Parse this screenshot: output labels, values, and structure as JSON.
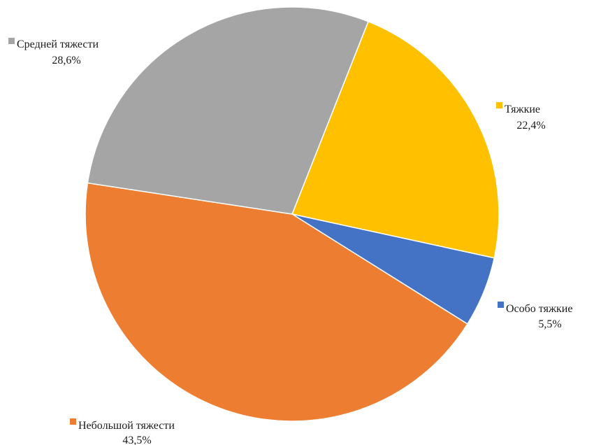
{
  "chart_data": {
    "type": "pie",
    "title": "",
    "slices": [
      {
        "label": "Тяжкие",
        "value": 22.4,
        "value_label": "22,4%",
        "color": "#FFC000"
      },
      {
        "label": "Особо тяжкие",
        "value": 5.5,
        "value_label": "5,5%",
        "color": "#4472C4"
      },
      {
        "label": "Небольшой тяжести",
        "value": 43.5,
        "value_label": "43,5%",
        "color": "#ED7D31"
      },
      {
        "label": "Средней тяжести",
        "value": 28.6,
        "value_label": "28,6%",
        "color": "#A5A5A5"
      }
    ],
    "legend": "none",
    "data_labels": "outside, category name with value"
  }
}
